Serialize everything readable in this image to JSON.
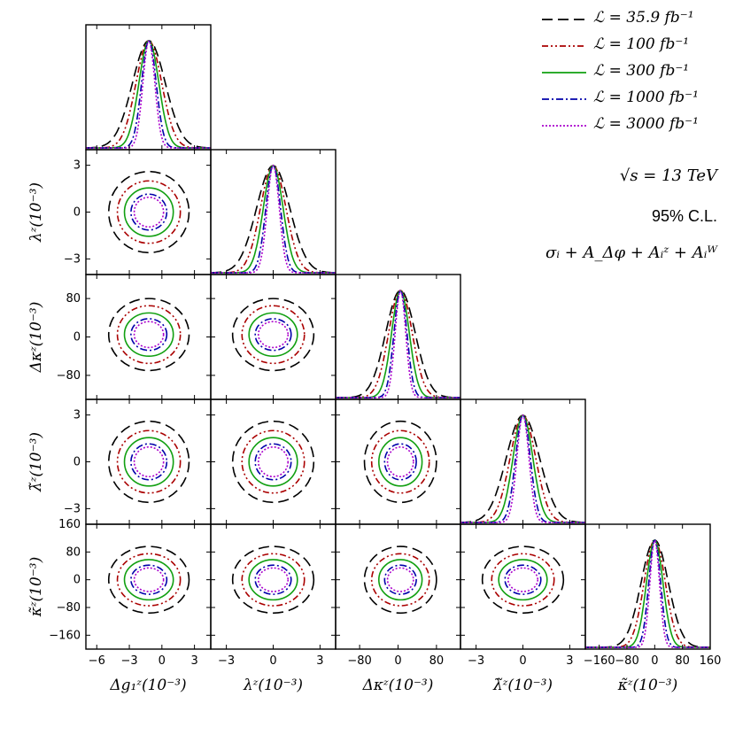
{
  "chart_data": {
    "type": "corner",
    "title": "",
    "parameters": [
      {
        "name": "dg1z",
        "xlabel": "Δg₁ᶻ(10⁻³)",
        "ylabel": "",
        "ticks": [
          -6,
          -3,
          0,
          3
        ],
        "tick_labels": [
          "−6",
          "−3",
          "0",
          "3"
        ],
        "range": [
          -7.0,
          4.5
        ]
      },
      {
        "name": "lambda_z",
        "xlabel": "λᶻ(10⁻³)",
        "ylabel": "λᶻ(10⁻³)",
        "ticks": [
          -3,
          0,
          3
        ],
        "tick_labels": [
          "−3",
          "0",
          "3"
        ],
        "range": [
          -4.0,
          4.0
        ]
      },
      {
        "name": "dkappa_z",
        "xlabel": "Δκᶻ(10⁻³)",
        "ylabel": "Δκᶻ(10⁻³)",
        "ticks": [
          -80,
          0,
          80
        ],
        "tick_labels": [
          "−80",
          "0",
          "80"
        ],
        "range": [
          -130,
          130
        ]
      },
      {
        "name": "lambda_tilde_z",
        "xlabel": "λ̃ᶻ(10⁻³)",
        "ylabel": "λ̃ᶻ(10⁻³)",
        "ticks": [
          -3,
          0,
          3
        ],
        "tick_labels": [
          "−3",
          "0",
          "3"
        ],
        "range": [
          -4.0,
          4.0
        ]
      },
      {
        "name": "kappa_tilde_z",
        "xlabel": "κ̃ᶻ(10⁻³)",
        "ylabel": "κ̃ᶻ(10⁻³)",
        "ticks": [
          -160,
          -80,
          0,
          80,
          160
        ],
        "tick_labels": [
          "−160",
          "−80",
          "0",
          "80",
          "160"
        ],
        "range": [
          -200,
          160
        ]
      }
    ],
    "centers": [
      -1.2,
      0.0,
      5.0,
      0.0,
      0.0
    ],
    "contour_radii": [
      {
        "luminosity": "35.9 fb⁻¹",
        "values": [
          3.7,
          2.6,
          75,
          2.6,
          96
        ]
      },
      {
        "luminosity": "100 fb⁻¹",
        "values": [
          2.9,
          2.0,
          60,
          2.0,
          75
        ]
      },
      {
        "luminosity": "300 fb⁻¹",
        "values": [
          2.25,
          1.55,
          45,
          1.55,
          58
        ]
      },
      {
        "luminosity": "1000 fb⁻¹",
        "values": [
          1.65,
          1.15,
          33,
          1.15,
          42
        ]
      },
      {
        "luminosity": "3000 fb⁻¹",
        "values": [
          1.35,
          0.95,
          27,
          0.95,
          34
        ]
      }
    ],
    "series": [
      {
        "name": "35.9 fb⁻¹",
        "color": "#000000",
        "dash": "12,6"
      },
      {
        "name": "100 fb⁻¹",
        "color": "#aa0000",
        "dash": "7,3,2,3,2,3"
      },
      {
        "name": "300 fb⁻¹",
        "color": "#11a011",
        "dash": ""
      },
      {
        "name": "1000 fb⁻¹",
        "color": "#0000aa",
        "dash": "8,3,2,3"
      },
      {
        "name": "3000 fb⁻¹",
        "color": "#aa00cc",
        "dash": "2,2"
      }
    ],
    "annotations": [
      "√s = 13 TeV",
      "95% C.L.",
      "σᵢ + A_Δφ + Aᵢᶻ + Aᵢᵂ"
    ]
  },
  "legend": [
    {
      "label": "ℒ = 35.9 fb⁻¹"
    },
    {
      "label": "ℒ = 100 fb⁻¹"
    },
    {
      "label": "ℒ = 300 fb⁻¹"
    },
    {
      "label": "ℒ = 1000 fb⁻¹"
    },
    {
      "label": "ℒ = 3000 fb⁻¹"
    }
  ],
  "info": {
    "energy": "√s = 13 TeV",
    "confidence": "95% C.L.",
    "observables": "σᵢ + A_Δφ + Aᵢᶻ + Aᵢᵂ"
  }
}
